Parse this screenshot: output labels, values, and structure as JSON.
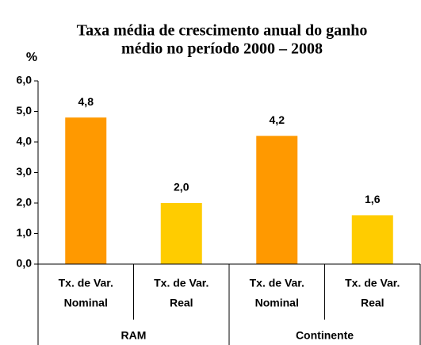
{
  "chart_data": {
    "type": "bar",
    "title": [
      "Taxa média de crescimento anual do ganho",
      "médio no período 2000 – 2008"
    ],
    "y_label": "%",
    "categories": [
      [
        "Tx. de Var.",
        "Nominal"
      ],
      [
        "Tx. de Var.",
        "Real"
      ],
      [
        "Tx. de Var.",
        "Nominal"
      ],
      [
        "Tx. de Var.",
        "Real"
      ]
    ],
    "groups": [
      "RAM",
      "Continente"
    ],
    "values": [
      4.8,
      2.0,
      4.2,
      1.6
    ],
    "value_labels": [
      "4,8",
      "2,0",
      "4,2",
      "1,6"
    ],
    "colors": [
      "#FF9900",
      "#FFCC00",
      "#FF9900",
      "#FFCC00"
    ],
    "ylim": [
      0,
      6
    ],
    "yticks": [
      {
        "value": 0,
        "label": "0,0"
      },
      {
        "value": 1,
        "label": "1,0"
      },
      {
        "value": 2,
        "label": "2,0"
      },
      {
        "value": 3,
        "label": "3,0"
      },
      {
        "value": 4,
        "label": "4,0"
      },
      {
        "value": 5,
        "label": "5,0"
      },
      {
        "value": 6,
        "label": "6,0"
      }
    ]
  }
}
